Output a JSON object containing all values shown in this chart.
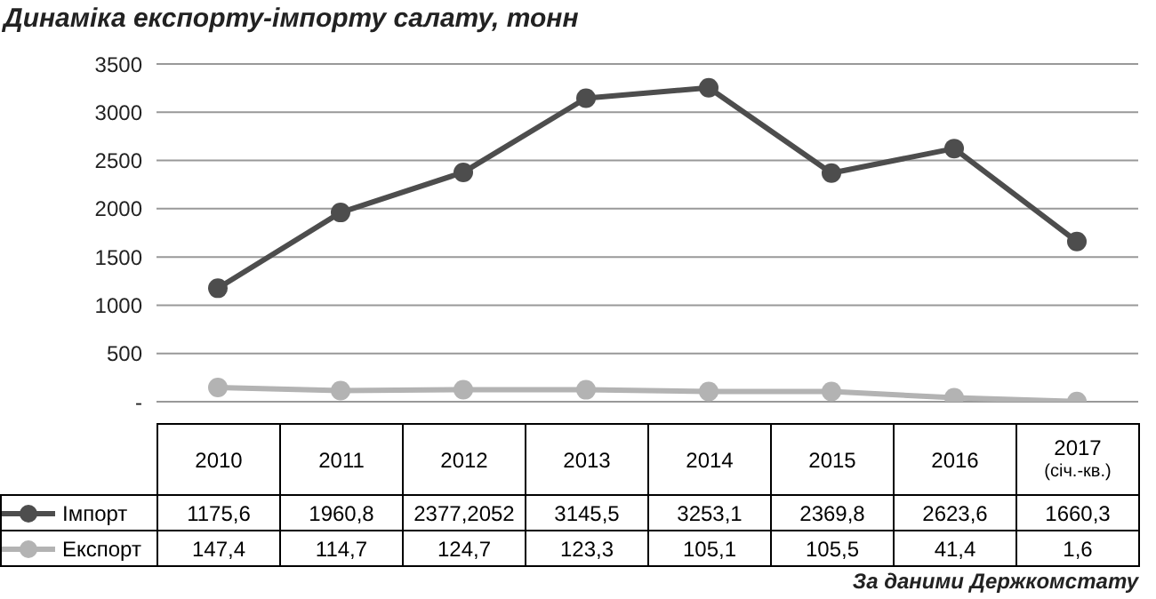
{
  "chart_data": {
    "type": "line",
    "title": "Динаміка експорту-імпорту салату, тонн",
    "categories": [
      "2010",
      "2011",
      "2012",
      "2013",
      "2014",
      "2015",
      "2016",
      "2017 (січ.-кв.)"
    ],
    "series": [
      {
        "name": "Імпорт",
        "color": "#4d4d4d",
        "values": [
          1175.6,
          1960.8,
          2377.2052,
          3145.5,
          3253.1,
          2369.8,
          2623.6,
          1660.3
        ],
        "value_labels": [
          "1175,6",
          "1960,8",
          "2377,2052",
          "3145,5",
          "3253,1",
          "2369,8",
          "2623,6",
          "1660,3"
        ]
      },
      {
        "name": "Експорт",
        "color": "#b3b3b3",
        "values": [
          147.4,
          114.7,
          124.7,
          123.3,
          105.1,
          105.5,
          41.4,
          1.6
        ],
        "value_labels": [
          "147,4",
          "114,7",
          "124,7",
          "123,3",
          "105,1",
          "105,5",
          "41,4",
          "1,6"
        ]
      }
    ],
    "ylim": [
      0,
      3500
    ],
    "yticks": [
      {
        "value": 0,
        "label": "-"
      },
      500,
      1000,
      1500,
      2000,
      2500,
      3000,
      3500
    ],
    "grid": "y",
    "marker": "circle",
    "legend": "bottom",
    "data_labels": true,
    "annotations": [
      "За даними Держкомстату"
    ]
  }
}
